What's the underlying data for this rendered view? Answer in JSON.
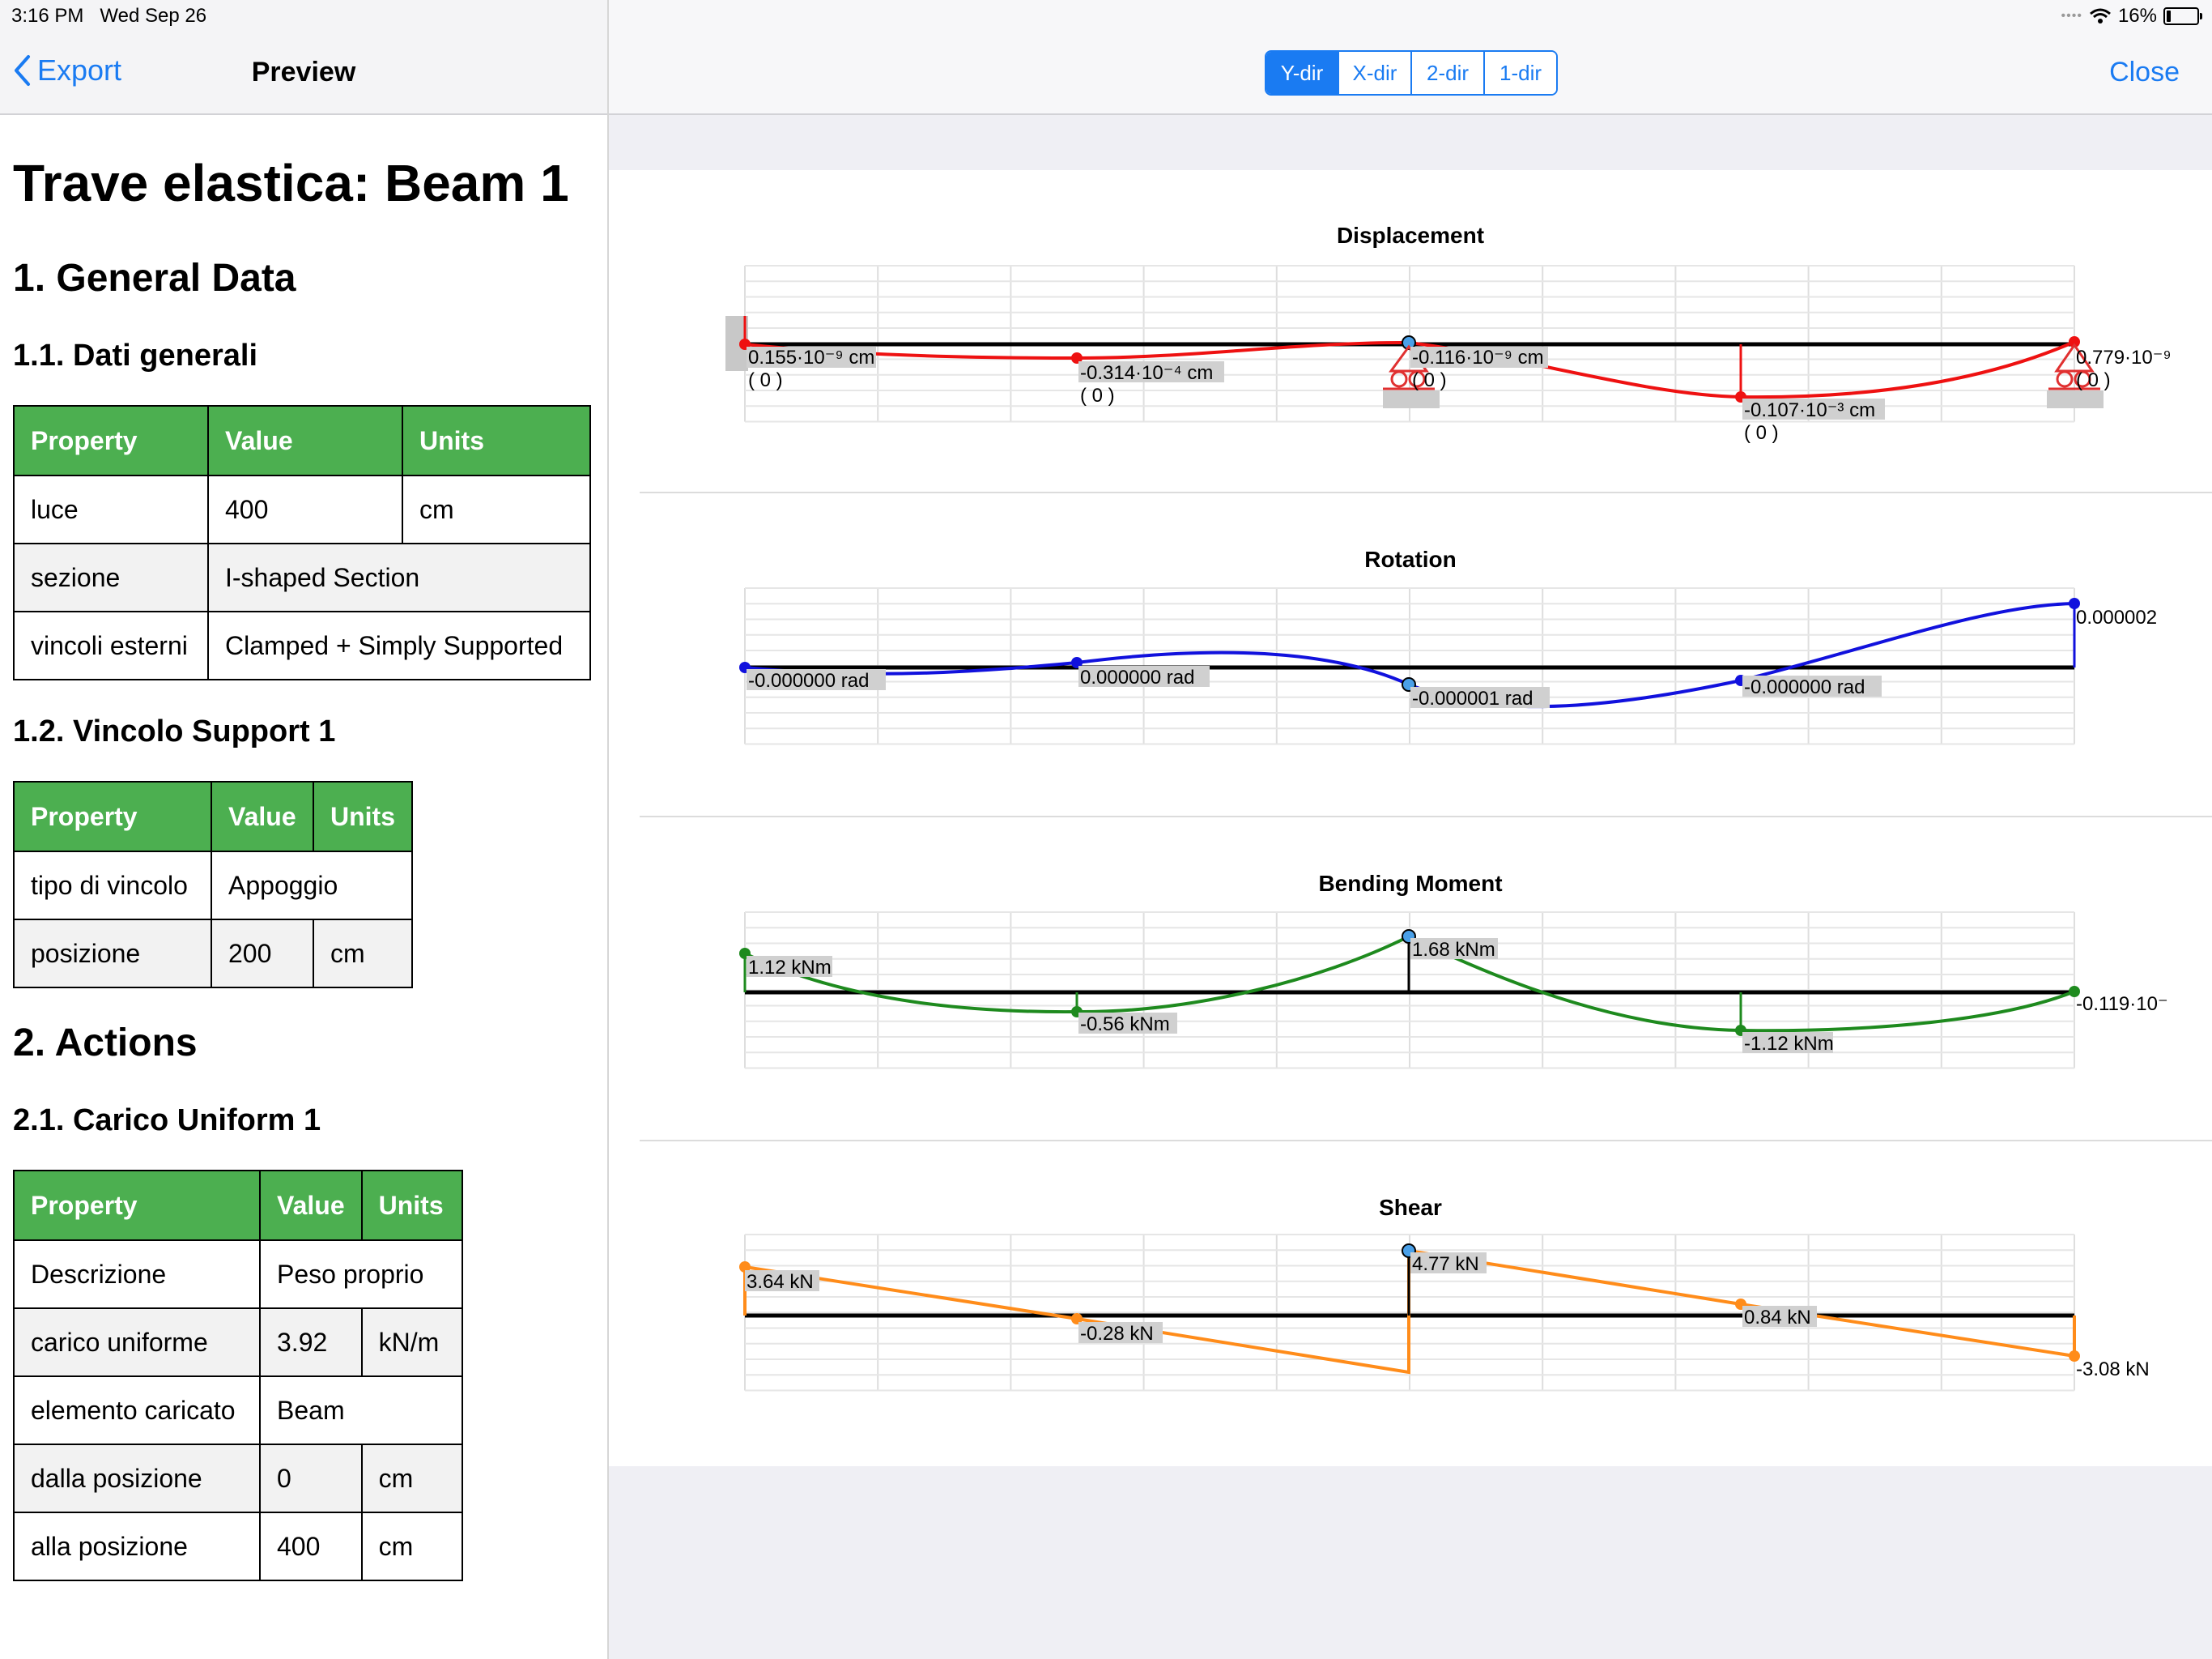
{
  "status": {
    "time": "3:16 PM",
    "date": "Wed Sep 26",
    "battery": "16%",
    "battery_level": 0.16
  },
  "left_nav": {
    "back_label": "Export",
    "title": "Preview"
  },
  "report": {
    "title": "Trave elastica: Beam 1",
    "sections": [
      {
        "heading": "1. General Data",
        "subsections": [
          {
            "heading": "1.1. Dati generali",
            "columns": [
              "Property",
              "Value",
              "Units"
            ],
            "rows": [
              [
                "luce",
                "400",
                "cm"
              ],
              [
                "sezione",
                "I-shaped Section",
                ""
              ],
              [
                "vincoli esterni",
                "Clamped + Simply Supported",
                ""
              ]
            ]
          },
          {
            "heading": "1.2. Vincolo Support 1",
            "columns": [
              "Property",
              "Value",
              "Units"
            ],
            "rows": [
              [
                "tipo di vincolo",
                "Appoggio",
                ""
              ],
              [
                "posizione",
                "200",
                "cm"
              ]
            ]
          }
        ]
      },
      {
        "heading": "2. Actions",
        "subsections": [
          {
            "heading": "2.1. Carico Uniform 1",
            "columns": [
              "Property",
              "Value",
              "Units"
            ],
            "rows": [
              [
                "Descrizione",
                "Peso proprio",
                ""
              ],
              [
                "carico uniforme",
                "3.92",
                "kN/m"
              ],
              [
                "elemento caricato",
                "Beam",
                ""
              ],
              [
                "dalla posizione",
                "0",
                "cm"
              ],
              [
                "alla posizione",
                "400",
                "cm"
              ]
            ]
          }
        ]
      }
    ]
  },
  "right_nav": {
    "segments": [
      "Y-dir",
      "X-dir",
      "2-dir",
      "1-dir"
    ],
    "active_segment": "Y-dir",
    "close_label": "Close"
  },
  "colors": {
    "accent": "#1a7bf2",
    "table_header": "#4caf50",
    "displacement": "#ee1111",
    "rotation": "#1111dd",
    "moment": "#1e8a1e",
    "shear": "#ff8c1a",
    "support": "#e03030"
  },
  "chart_data": [
    {
      "type": "line",
      "title": "Displacement",
      "x": [
        0,
        100,
        200,
        300,
        400
      ],
      "labels": [
        "0.155·10⁻⁹ cm",
        "-0.314·10⁻⁴ cm",
        "-0.116·10⁻⁹ cm",
        "-0.107·10⁻³ cm",
        "0.779·10⁻⁹"
      ],
      "sublabels": [
        "( 0 )",
        "( 0 )",
        "( 0 )",
        "( 0 )",
        "( 0 )"
      ]
    },
    {
      "type": "line",
      "title": "Rotation",
      "x": [
        0,
        100,
        200,
        300,
        400
      ],
      "labels": [
        "-0.000000 rad",
        "0.000000 rad",
        "-0.000001 rad",
        "-0.000000 rad",
        "0.000002"
      ]
    },
    {
      "type": "line",
      "title": "Bending Moment",
      "x": [
        0,
        100,
        200,
        300,
        400
      ],
      "labels": [
        "1.12 kNm",
        "-0.56 kNm",
        "1.68 kNm",
        "-1.12 kNm",
        "-0.119·10⁻"
      ]
    },
    {
      "type": "line",
      "title": "Shear",
      "x": [
        0,
        100,
        200,
        300,
        400
      ],
      "labels": [
        "3.64 kN",
        "-0.28 kN",
        "4.77 kN",
        "0.84 kN",
        "-3.08 kN"
      ]
    }
  ]
}
